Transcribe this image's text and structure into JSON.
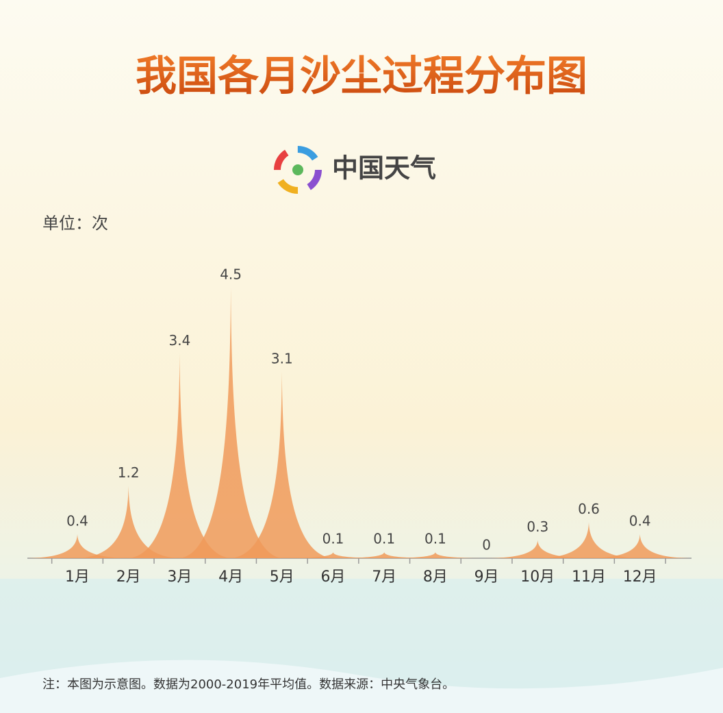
{
  "chart_data": {
    "type": "spike",
    "title": "我国各月沙尘过程分布图",
    "logo_text": "中国天气",
    "unit_label": "单位：次",
    "note": "注：本图为示意图。数据为2000-2019年平均值。数据来源：中央气象台。",
    "categories": [
      "1月",
      "2月",
      "3月",
      "4月",
      "5月",
      "6月",
      "7月",
      "8月",
      "9月",
      "10月",
      "11月",
      "12月"
    ],
    "values": [
      0.4,
      1.2,
      3.4,
      4.5,
      3.1,
      0.1,
      0.1,
      0.1,
      0,
      0.3,
      0.6,
      0.4
    ],
    "color": "#f09a5a"
  }
}
